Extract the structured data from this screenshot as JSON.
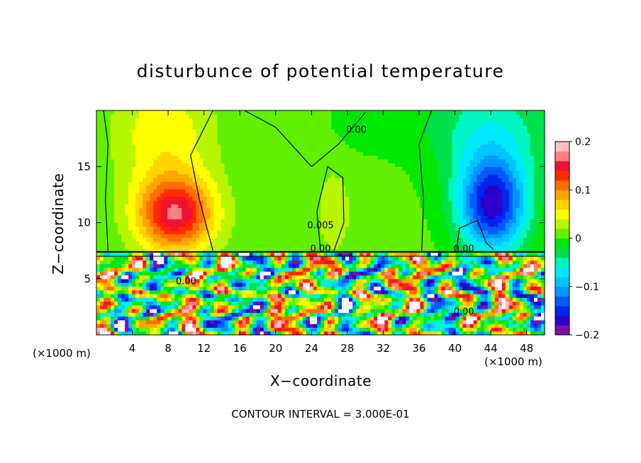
{
  "chart_data": {
    "type": "heatmap",
    "title": "disturbunce of potential temperature",
    "xlabel": "X−coordinate",
    "ylabel": "Z−coordinate",
    "x_unit_left": "(×1000 m)",
    "x_unit_right": "(×1000 m)",
    "x_ticks": [
      4,
      8,
      12,
      16,
      20,
      24,
      28,
      32,
      36,
      40,
      44,
      48
    ],
    "y_ticks": [
      5,
      10,
      15
    ],
    "xlim": [
      0,
      50
    ],
    "ylim": [
      0,
      20
    ],
    "colorbar": {
      "ticks": [
        "0.2",
        "0.1",
        "0",
        "−0.1",
        "−0.2"
      ],
      "tick_values": [
        0.2,
        0.1,
        0,
        -0.1,
        -0.2
      ],
      "range": [
        -0.2,
        0.2
      ]
    },
    "contour_labels": [
      {
        "text": "0.00",
        "x": 29,
        "z": 18
      },
      {
        "text": "0.005",
        "x": 25,
        "z": 9.5
      },
      {
        "text": "0.00",
        "x": 25,
        "z": 7.4
      },
      {
        "text": "0.00",
        "x": 41,
        "z": 7.4
      },
      {
        "text": "0.00",
        "x": 10,
        "z": 4.5
      },
      {
        "text": "0.00",
        "x": 41,
        "z": 1.8
      }
    ],
    "features": [
      {
        "name": "warm anomaly",
        "x": 8.5,
        "z": 10,
        "peak": 0.15
      },
      {
        "name": "cold anomaly",
        "x": 44,
        "z": 11,
        "peak": -0.16
      },
      {
        "name": "warm ridge",
        "x": 26,
        "z": 11,
        "peak": 0.04
      }
    ],
    "footer": "CONTOUR INTERVAL = 3.000E-01",
    "colors": {
      "palette": [
        "#7d0fa8",
        "#2b00c8",
        "#0026ee",
        "#005cf8",
        "#0096ff",
        "#00c4ff",
        "#00eaff",
        "#00f6c0",
        "#00e04a",
        "#00e800",
        "#62f000",
        "#b8f500",
        "#ffff00",
        "#ffd500",
        "#ffa500",
        "#ff6e00",
        "#ff2a00",
        "#ee1230",
        "#ff8080",
        "#ffc0c0"
      ]
    }
  }
}
